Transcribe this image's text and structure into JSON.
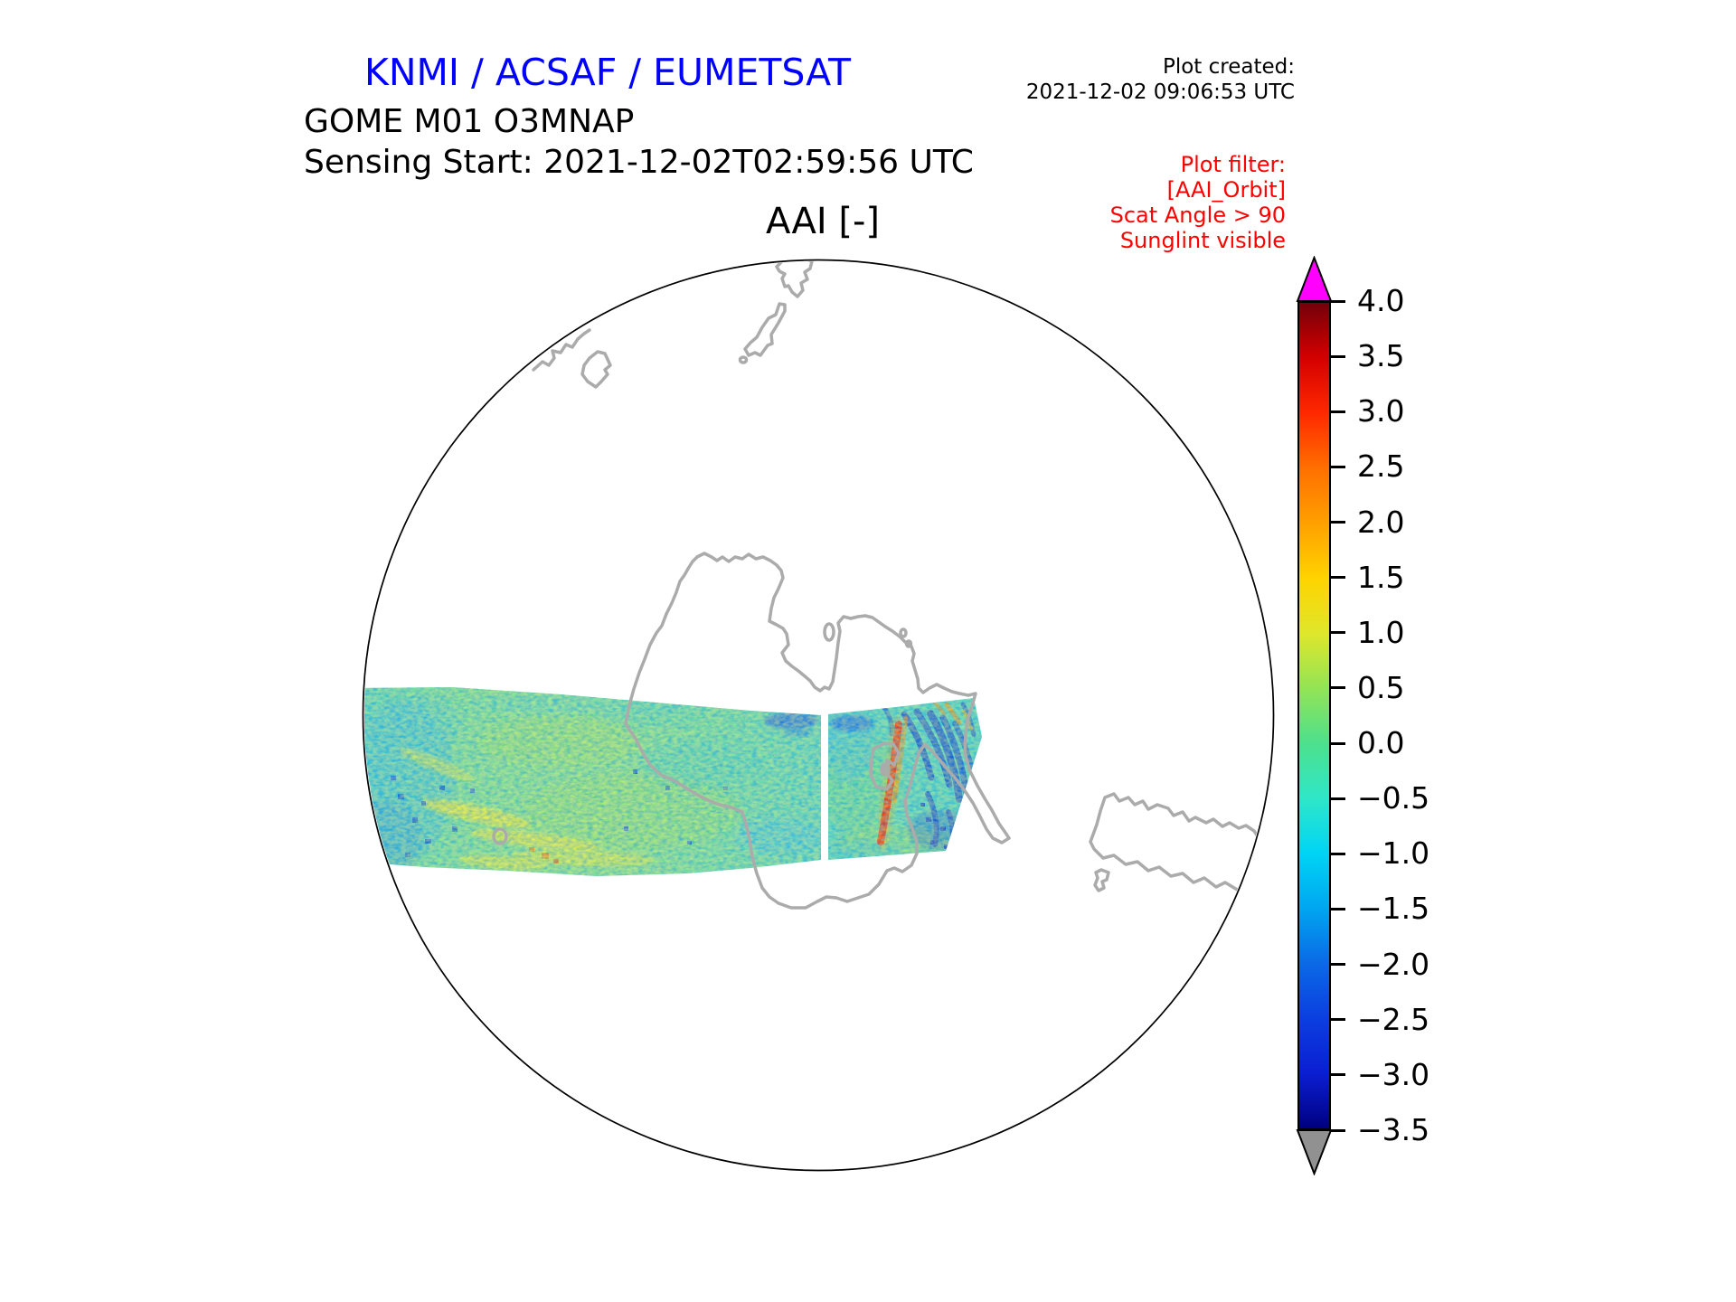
{
  "header": {
    "agency_title": "KNMI / ACSAF / EUMETSAT",
    "agency_title_color": "#0000ff",
    "plot_created_label": "Plot created:",
    "plot_created_time": "2021-12-02 09:06:53 UTC",
    "product_name": "GOME M01 O3MNAP",
    "sensing_start": "Sensing Start: 2021-12-02T02:59:56 UTC"
  },
  "plot_filter": {
    "color": "#ff0000",
    "line1": "Plot filter:",
    "line2": "[AAI_Orbit]",
    "line3": "Scat Angle > 90",
    "line4": "Sunglint visible"
  },
  "map": {
    "title": "AAI [-]",
    "projection": "south polar stereographic",
    "boundary_color": "#000000",
    "coastline_color": "#ababab",
    "visible_lands": [
      "Antarctica",
      "New Zealand",
      "Tasmania",
      "Australia coast fragment",
      "Patagonia / Tierra del Fuego"
    ]
  },
  "colorbar": {
    "over_color": "#ff00ff",
    "under_color": "#919191",
    "ticks": [
      "4.0",
      "3.5",
      "3.0",
      "2.5",
      "2.0",
      "1.5",
      "1.0",
      "0.5",
      "0.0",
      "−0.5",
      "−1.0",
      "−1.5",
      "−2.0",
      "−2.5",
      "−3.0",
      "−3.5"
    ],
    "stops": [
      {
        "value": 4.0,
        "color": "#73000a"
      },
      {
        "value": 3.5,
        "color": "#d40000"
      },
      {
        "value": 3.0,
        "color": "#ff2800"
      },
      {
        "value": 2.5,
        "color": "#ff6f00"
      },
      {
        "value": 2.0,
        "color": "#ffa000"
      },
      {
        "value": 1.5,
        "color": "#ffd300"
      },
      {
        "value": 1.0,
        "color": "#dfe72b"
      },
      {
        "value": 0.5,
        "color": "#93e455"
      },
      {
        "value": 0.0,
        "color": "#4de08d"
      },
      {
        "value": -0.5,
        "color": "#2fe7c8"
      },
      {
        "value": -1.0,
        "color": "#00d4f5"
      },
      {
        "value": -1.5,
        "color": "#00a6f0"
      },
      {
        "value": -2.0,
        "color": "#0b69e6"
      },
      {
        "value": -2.5,
        "color": "#0b3fe0"
      },
      {
        "value": -3.0,
        "color": "#0b1ed2"
      },
      {
        "value": -3.5,
        "color": "#00007f"
      }
    ]
  },
  "chart_data": {
    "type": "heatmap",
    "title": "AAI [-]",
    "subtitle": "GOME M01 O3MNAP, Sensing Start 2021-12-02T02:59:56 UTC",
    "projection": "polar stereographic centered on the South Pole, map edge near 35–40°S",
    "colorbar": {
      "label": "AAI [-]",
      "range": [
        -3.5,
        4.0
      ],
      "tick_step": 0.5,
      "tick_values": [
        4.0,
        3.5,
        3.0,
        2.5,
        2.0,
        1.5,
        1.0,
        0.5,
        0.0,
        -0.5,
        -1.0,
        -1.5,
        -2.0,
        -2.5,
        -3.0,
        -3.5
      ],
      "over_arrow_color": "#ff00ff",
      "under_arrow_color": "#919191",
      "orientation": "vertical, right side"
    },
    "swath": {
      "description": "Single east-west satellite orbit swath crossing the Southern Ocean and Antarctica, clipped by the circular map boundary on the left",
      "vertical_white_gap_present": true,
      "typical_background_values": [
        -0.5,
        0.5
      ],
      "yellow_patch_values": [
        0.5,
        1.5
      ],
      "red_streak_peak_value": 3.0,
      "dark_blue_streak_minimum": -3.0,
      "notable_features": [
        "cyan/blue noisy region at western end",
        "yellow diagonal streaks in west-center",
        "smooth green-teal center",
        "red/orange diagonal streak near 75° of swath length",
        "fan of dark blue streaks and speckles at eastern end"
      ]
    }
  }
}
